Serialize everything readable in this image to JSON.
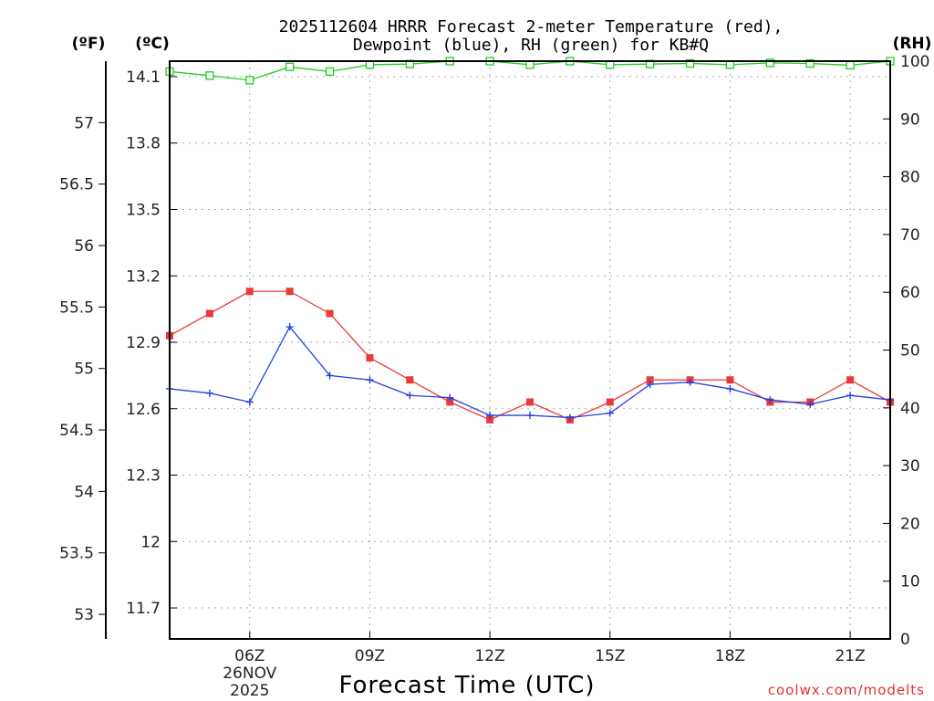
{
  "chart_data": {
    "type": "line",
    "title_line1": "2025112604 HRRR Forecast 2-meter Temperature (red),",
    "title_line2": "Dewpoint (blue), RH (green) for KB#Q",
    "xlabel": "Forecast Time (UTC)",
    "credit": "coolwx.com/modelts",
    "unit_f": "(ºF)",
    "unit_c": "(ºC)",
    "unit_rh": "(RH)",
    "x_hours": [
      4,
      5,
      6,
      7,
      8,
      9,
      10,
      11,
      12,
      13,
      14,
      15,
      16,
      17,
      18,
      19,
      20,
      21,
      22
    ],
    "xlim": [
      4,
      22
    ],
    "x_ticks": [
      {
        "hour": 6,
        "label": "06Z",
        "date1": "26NOV",
        "date2": "2025"
      },
      {
        "hour": 9,
        "label": "09Z"
      },
      {
        "hour": 12,
        "label": "12Z"
      },
      {
        "hour": 15,
        "label": "15Z"
      },
      {
        "hour": 18,
        "label": "18Z"
      },
      {
        "hour": 21,
        "label": "21Z"
      }
    ],
    "celsius_axis": {
      "lim": [
        11.56,
        14.17
      ],
      "ticks": [
        "11.7",
        "12",
        "12.3",
        "12.6",
        "12.9",
        "13.2",
        "13.5",
        "13.8",
        "14.1"
      ]
    },
    "fahrenheit_axis": {
      "lim": [
        52.8,
        57.5
      ],
      "ticks": [
        "53",
        "53.5",
        "54",
        "54.5",
        "55",
        "55.5",
        "56",
        "56.5",
        "57"
      ]
    },
    "rh_axis": {
      "lim": [
        0,
        100
      ],
      "ticks": [
        "0",
        "10",
        "20",
        "30",
        "40",
        "50",
        "60",
        "70",
        "80",
        "90",
        "100"
      ]
    },
    "series": [
      {
        "name": "Temperature",
        "unit": "C",
        "color": "#e83a3a",
        "marker": "filled-square",
        "values": [
          12.93,
          13.03,
          13.13,
          13.13,
          13.03,
          12.83,
          12.73,
          12.63,
          12.55,
          12.63,
          12.55,
          12.63,
          12.73,
          12.73,
          12.73,
          12.63,
          12.63,
          12.73,
          12.63
        ]
      },
      {
        "name": "Dewpoint",
        "unit": "C",
        "color": "#2440e0",
        "marker": "plus",
        "values": [
          12.69,
          12.67,
          12.63,
          12.97,
          12.75,
          12.73,
          12.66,
          12.65,
          12.57,
          12.57,
          12.56,
          12.58,
          12.71,
          12.72,
          12.69,
          12.64,
          12.62,
          12.66,
          12.64
        ]
      },
      {
        "name": "RH",
        "unit": "%",
        "color": "#20cc20",
        "marker": "open-square",
        "values": [
          98.2,
          97.5,
          96.7,
          99.0,
          98.2,
          99.4,
          99.5,
          100,
          100,
          99.4,
          100,
          99.4,
          99.5,
          99.6,
          99.4,
          99.7,
          99.6,
          99.3,
          100
        ]
      }
    ]
  }
}
